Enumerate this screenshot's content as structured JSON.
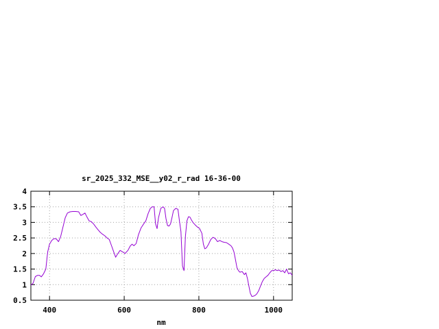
{
  "chart_data": {
    "type": "line",
    "title": "sr_2025_332_MSE__y02_r_rad 16-36-00",
    "xlabel": "nm",
    "ylabel": "",
    "xlim": [
      350,
      1050
    ],
    "ylim": [
      0.5,
      4
    ],
    "xticks": [
      400,
      600,
      800,
      1000
    ],
    "xtick_labels": [
      "400",
      "600",
      "800",
      "1000"
    ],
    "yticks": [
      0.5,
      1,
      1.5,
      2,
      2.5,
      3,
      3.5,
      4
    ],
    "ytick_labels": [
      "0.5",
      "1",
      "1.5",
      "2",
      "2.5",
      "3",
      "3.5",
      "4"
    ],
    "grid": true,
    "legend": "none",
    "series": [
      {
        "color": "#9400d3",
        "x": [
          350,
          356,
          362,
          368,
          373,
          378,
          384,
          390,
          395,
          400,
          406,
          412,
          418,
          424,
          430,
          436,
          442,
          448,
          455,
          462,
          470,
          478,
          484,
          490,
          495,
          500,
          506,
          512,
          518,
          524,
          530,
          536,
          542,
          548,
          554,
          560,
          566,
          572,
          577,
          583,
          589,
          596,
          602,
          610,
          616,
          621,
          626,
          632,
          638,
          645,
          652,
          658,
          664,
          670,
          675,
          680,
          684,
          688,
          692,
          698,
          704,
          708,
          712,
          716,
          720,
          724,
          728,
          732,
          738,
          744,
          748,
          752,
          756,
          760,
          764,
          768,
          772,
          776,
          780,
          784,
          790,
          796,
          802,
          808,
          812,
          816,
          820,
          826,
          832,
          838,
          844,
          850,
          856,
          862,
          868,
          874,
          880,
          886,
          890,
          894,
          898,
          902,
          906,
          910,
          916,
          922,
          926,
          930,
          934,
          938,
          942,
          946,
          950,
          955,
          960,
          965,
          970,
          975,
          980,
          985,
          990,
          995,
          1000,
          1005,
          1010,
          1015,
          1020,
          1025,
          1030,
          1035,
          1040,
          1045,
          1050
        ],
        "y": [
          0.98,
          1.05,
          1.26,
          1.3,
          1.3,
          1.25,
          1.35,
          1.5,
          2.05,
          2.3,
          2.42,
          2.48,
          2.47,
          2.38,
          2.55,
          2.85,
          3.15,
          3.3,
          3.34,
          3.35,
          3.35,
          3.34,
          3.22,
          3.26,
          3.3,
          3.18,
          3.05,
          3.02,
          2.95,
          2.85,
          2.76,
          2.68,
          2.62,
          2.57,
          2.5,
          2.45,
          2.25,
          2.05,
          1.88,
          2.0,
          2.1,
          2.05,
          2.0,
          2.1,
          2.24,
          2.3,
          2.25,
          2.32,
          2.6,
          2.82,
          2.95,
          3.05,
          3.28,
          3.45,
          3.5,
          3.5,
          2.95,
          2.8,
          3.15,
          3.45,
          3.5,
          3.45,
          3.12,
          2.9,
          2.88,
          2.95,
          3.15,
          3.38,
          3.45,
          3.42,
          3.05,
          2.7,
          1.6,
          1.45,
          2.55,
          3.05,
          3.18,
          3.17,
          3.08,
          3.0,
          2.92,
          2.85,
          2.8,
          2.65,
          2.3,
          2.15,
          2.18,
          2.3,
          2.45,
          2.52,
          2.48,
          2.38,
          2.42,
          2.38,
          2.36,
          2.35,
          2.3,
          2.25,
          2.18,
          2.05,
          1.8,
          1.55,
          1.45,
          1.4,
          1.42,
          1.32,
          1.38,
          1.2,
          0.95,
          0.72,
          0.62,
          0.63,
          0.65,
          0.7,
          0.8,
          0.95,
          1.1,
          1.2,
          1.25,
          1.3,
          1.38,
          1.45,
          1.45,
          1.48,
          1.45,
          1.47,
          1.42,
          1.45,
          1.38,
          1.5,
          1.35,
          1.38,
          1.3
        ]
      }
    ]
  }
}
